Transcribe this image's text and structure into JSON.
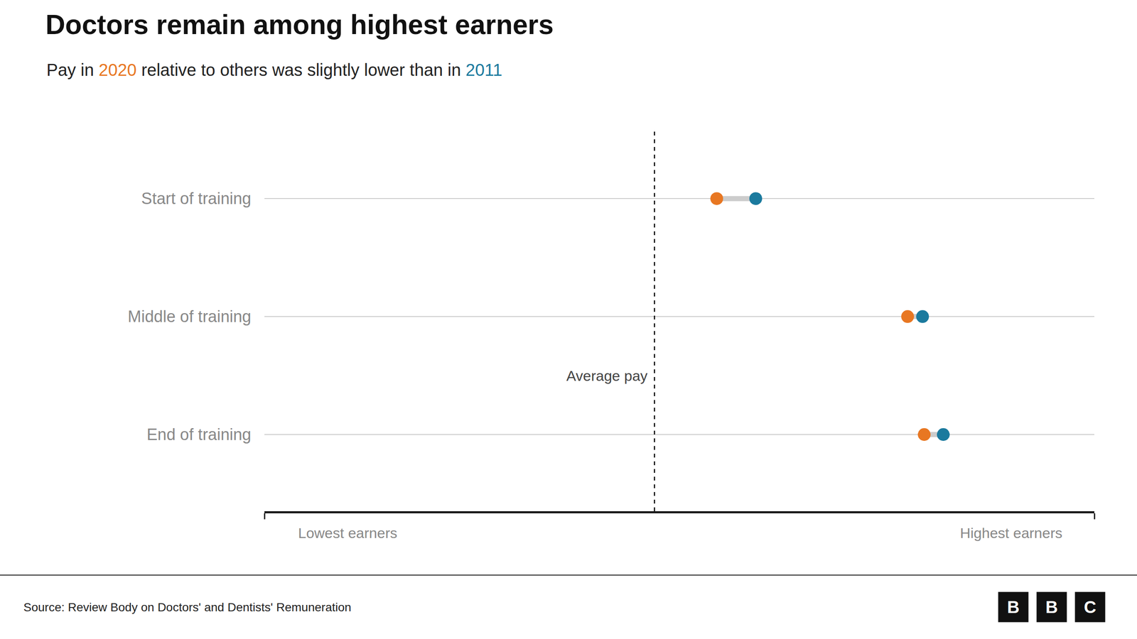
{
  "chart_data": {
    "type": "dumbbell",
    "title": "Doctors remain among highest earners",
    "subtitle": "Pay in 2020 relative to others was slightly lower than in 2011",
    "categories": [
      "Start of training",
      "Middle of training",
      "End of training"
    ],
    "series": [
      {
        "name": "2020",
        "color": "#E87722",
        "values": [
          0.545,
          0.775,
          0.795
        ]
      },
      {
        "name": "2011",
        "color": "#1B7A9E",
        "values": [
          0.592,
          0.793,
          0.818
        ]
      }
    ],
    "xlim": [
      0,
      1
    ],
    "xticks": [
      0,
      1
    ],
    "tick_labels": "y",
    "grid": true,
    "xlabel": [
      "Lowest earners",
      "Highest earners"
    ],
    "annotations": [
      {
        "text": "Average pay",
        "x": 0.47,
        "line_style": "dashed"
      }
    ],
    "source": "Source: Review Body on Doctors' and Dentists' Remuneration",
    "logo": "BBC"
  }
}
